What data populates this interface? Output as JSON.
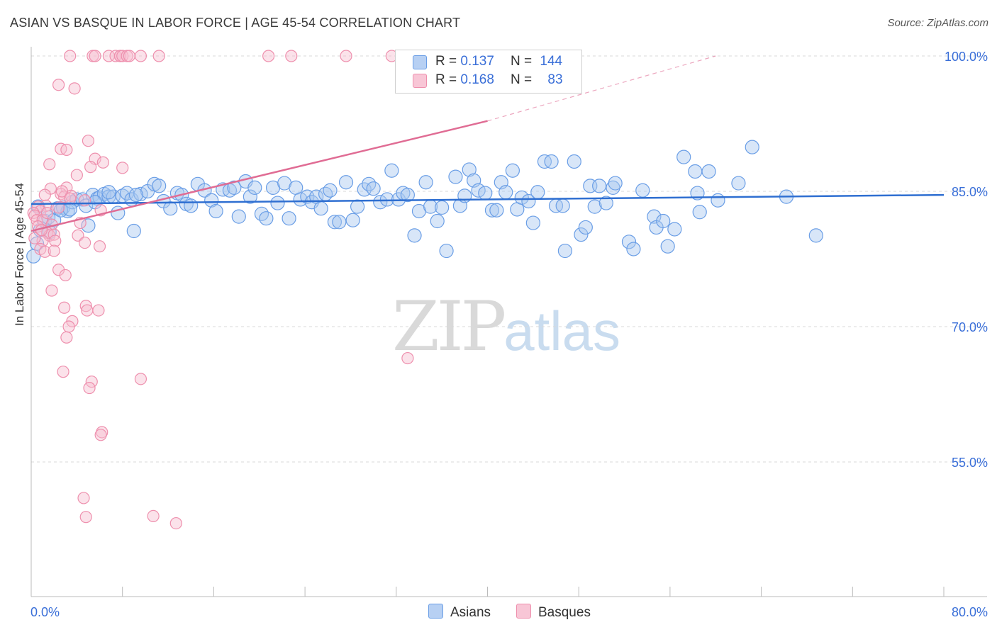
{
  "title": "ASIAN VS BASQUE IN LABOR FORCE | AGE 45-54 CORRELATION CHART",
  "source": "Source: ZipAtlas.com",
  "watermark": {
    "zip": "ZIP",
    "atlas": "atlas"
  },
  "legend_top": {
    "asian": {
      "r_label": "R =",
      "r_value": "0.137",
      "n_label": "N =",
      "n_value": "144"
    },
    "basque": {
      "r_label": "R =",
      "r_value": "0.168",
      "n_label": "N =",
      "n_value": "83"
    }
  },
  "colors": {
    "asian_fill": "#a9c8f0",
    "asian_stroke": "#6a9ee6",
    "asian_line": "#2f6fd1",
    "basque_fill": "#f6bfd0",
    "basque_stroke": "#ee8fad",
    "basque_line": "#e06c94",
    "tick_text": "#3a6fd8",
    "grid": "#d8d8d8"
  },
  "chart_data": {
    "type": "scatter",
    "title": "ASIAN VS BASQUE IN LABOR FORCE | AGE 45-54 CORRELATION CHART",
    "xlabel": "",
    "ylabel": "In Labor Force | Age 45-54",
    "xlim": [
      0,
      80
    ],
    "ylim": [
      40,
      100
    ],
    "x_tick_labels": [
      "0.0%",
      "80.0%"
    ],
    "y_ticks": [
      55,
      70,
      85,
      100
    ],
    "y_tick_labels": [
      "55.0%",
      "70.0%",
      "85.0%",
      "100.0%"
    ],
    "legend": [
      "Asians",
      "Basques"
    ],
    "series": [
      {
        "name": "Asians",
        "r": 0.137,
        "n": 144,
        "trend": {
          "x0": 0,
          "y0": 83.6,
          "x1": 80,
          "y1": 84.6
        },
        "points": [
          [
            0.2,
            77.8
          ],
          [
            0.5,
            79.2
          ],
          [
            0.8,
            80.7
          ],
          [
            1.2,
            81.7
          ],
          [
            1.5,
            82.1
          ],
          [
            2,
            81.8
          ],
          [
            2.3,
            83.1
          ],
          [
            2.8,
            83.2
          ],
          [
            3.2,
            82.8
          ],
          [
            3.6,
            83.8
          ],
          [
            4,
            84.1
          ],
          [
            4.5,
            84.1
          ],
          [
            4.8,
            83.4
          ],
          [
            5,
            81.2
          ],
          [
            5.4,
            84.6
          ],
          [
            5.8,
            84.2
          ],
          [
            6,
            84.3
          ],
          [
            6.4,
            84.7
          ],
          [
            6.8,
            84.4
          ],
          [
            7.2,
            84.4
          ],
          [
            7.6,
            82.6
          ],
          [
            8,
            84.5
          ],
          [
            8.4,
            84.8
          ],
          [
            8.8,
            84.1
          ],
          [
            9,
            80.6
          ],
          [
            9.6,
            84.7
          ],
          [
            10.2,
            85.0
          ],
          [
            10.8,
            85.8
          ],
          [
            11.2,
            85.6
          ],
          [
            11.6,
            83.9
          ],
          [
            12.2,
            83.1
          ],
          [
            12.8,
            84.8
          ],
          [
            13.2,
            84.6
          ],
          [
            13.6,
            83.6
          ],
          [
            14,
            83.4
          ],
          [
            14.6,
            85.8
          ],
          [
            15.2,
            85.1
          ],
          [
            15.8,
            84.0
          ],
          [
            16.2,
            82.8
          ],
          [
            16.8,
            85.2
          ],
          [
            17.4,
            85.1
          ],
          [
            17.8,
            85.4
          ],
          [
            18.2,
            82.2
          ],
          [
            18.8,
            86.1
          ],
          [
            19.2,
            84.4
          ],
          [
            19.6,
            85.4
          ],
          [
            20.2,
            82.5
          ],
          [
            20.6,
            82.0
          ],
          [
            21.2,
            85.4
          ],
          [
            21.6,
            83.7
          ],
          [
            22.2,
            85.9
          ],
          [
            22.6,
            82.0
          ],
          [
            23.2,
            85.4
          ],
          [
            23.6,
            84.1
          ],
          [
            24.2,
            84.4
          ],
          [
            24.6,
            83.8
          ],
          [
            25,
            84.4
          ],
          [
            25.4,
            83.1
          ],
          [
            25.8,
            84.7
          ],
          [
            26.2,
            85.1
          ],
          [
            26.6,
            81.6
          ],
          [
            27,
            81.6
          ],
          [
            27.6,
            86.0
          ],
          [
            28.2,
            81.8
          ],
          [
            28.6,
            83.3
          ],
          [
            29.2,
            85.2
          ],
          [
            29.6,
            85.8
          ],
          [
            30,
            85.3
          ],
          [
            30.6,
            83.8
          ],
          [
            31.2,
            84.1
          ],
          [
            31.6,
            87.3
          ],
          [
            32.2,
            84.1
          ],
          [
            32.6,
            84.8
          ],
          [
            33,
            84.6
          ],
          [
            33.6,
            80.1
          ],
          [
            34,
            82.8
          ],
          [
            34.6,
            86.0
          ],
          [
            35,
            83.3
          ],
          [
            35.6,
            81.7
          ],
          [
            36,
            83.2
          ],
          [
            36.4,
            78.4
          ],
          [
            37.2,
            86.6
          ],
          [
            37.6,
            83.4
          ],
          [
            38,
            84.5
          ],
          [
            38.4,
            87.4
          ],
          [
            38.8,
            86.2
          ],
          [
            39.2,
            85.1
          ],
          [
            39.8,
            84.8
          ],
          [
            40.4,
            82.9
          ],
          [
            40.8,
            82.9
          ],
          [
            41.2,
            86.0
          ],
          [
            41.6,
            84.9
          ],
          [
            42.2,
            87.3
          ],
          [
            42.6,
            83.0
          ],
          [
            43,
            84.3
          ],
          [
            43.6,
            83.9
          ],
          [
            44,
            81.5
          ],
          [
            44.4,
            84.9
          ],
          [
            45,
            88.3
          ],
          [
            45.6,
            88.3
          ],
          [
            46,
            83.4
          ],
          [
            46.6,
            83.4
          ],
          [
            46.8,
            78.4
          ],
          [
            47.6,
            88.3
          ],
          [
            48.2,
            80.2
          ],
          [
            48.6,
            81.0
          ],
          [
            49,
            85.6
          ],
          [
            49.4,
            83.3
          ],
          [
            49.8,
            85.6
          ],
          [
            50.4,
            83.7
          ],
          [
            51,
            85.4
          ],
          [
            51.2,
            85.9
          ],
          [
            52.4,
            79.4
          ],
          [
            52.8,
            78.6
          ],
          [
            53.6,
            85.1
          ],
          [
            54.6,
            82.2
          ],
          [
            54.8,
            81.0
          ],
          [
            55.4,
            81.7
          ],
          [
            55.8,
            78.9
          ],
          [
            56.4,
            80.8
          ],
          [
            57.2,
            88.8
          ],
          [
            58.2,
            87.2
          ],
          [
            58.4,
            84.8
          ],
          [
            58.6,
            82.7
          ],
          [
            59.4,
            87.2
          ],
          [
            60.2,
            84.0
          ],
          [
            62,
            85.9
          ],
          [
            63.2,
            89.9
          ],
          [
            66.2,
            84.4
          ],
          [
            68.8,
            80.1
          ],
          [
            0.6,
            83.3
          ],
          [
            1.6,
            80.5
          ],
          [
            2.6,
            82.9
          ],
          [
            3.4,
            83.0
          ],
          [
            5.6,
            83.8
          ],
          [
            6.8,
            84.9
          ],
          [
            9.2,
            84.6
          ]
        ]
      },
      {
        "name": "Basques",
        "r": 0.168,
        "n": 83,
        "trend": {
          "x0": 0,
          "y0": 80.6,
          "x1": 40,
          "y1": 92.8,
          "dashed_x1": 60,
          "dashed_y1": 100.0
        },
        "points": [
          [
            3.4,
            100
          ],
          [
            5.4,
            100
          ],
          [
            5.6,
            100
          ],
          [
            6.8,
            100
          ],
          [
            7.4,
            100
          ],
          [
            7.8,
            100
          ],
          [
            7.8,
            100
          ],
          [
            8.0,
            100
          ],
          [
            8.4,
            100
          ],
          [
            8.6,
            100
          ],
          [
            9.6,
            100
          ],
          [
            11.2,
            100
          ],
          [
            20.8,
            100
          ],
          [
            22.8,
            100
          ],
          [
            27.6,
            100
          ],
          [
            31.6,
            100
          ],
          [
            2.4,
            96.8
          ],
          [
            3.8,
            96.4
          ],
          [
            5.0,
            90.6
          ],
          [
            2.6,
            89.7
          ],
          [
            3.1,
            89.6
          ],
          [
            5.6,
            88.6
          ],
          [
            6.3,
            88.2
          ],
          [
            1.6,
            88.0
          ],
          [
            5.2,
            87.7
          ],
          [
            8.0,
            87.6
          ],
          [
            4.0,
            86.8
          ],
          [
            1.7,
            85.3
          ],
          [
            3.1,
            85.4
          ],
          [
            1.2,
            84.6
          ],
          [
            2.6,
            84.7
          ],
          [
            2.9,
            84.4
          ],
          [
            3.5,
            84.5
          ],
          [
            4.7,
            84.0
          ],
          [
            1.3,
            83.4
          ],
          [
            2.4,
            83.2
          ],
          [
            0.6,
            83.3
          ],
          [
            0.8,
            82.8
          ],
          [
            0.2,
            82.6
          ],
          [
            0.3,
            82.3
          ],
          [
            0.5,
            81.8
          ],
          [
            1.0,
            81.8
          ],
          [
            0.6,
            81.1
          ],
          [
            1.8,
            81.3
          ],
          [
            4.3,
            81.5
          ],
          [
            6.1,
            82.9
          ],
          [
            1.4,
            80.4
          ],
          [
            1.6,
            80.1
          ],
          [
            2.0,
            80.2
          ],
          [
            4.1,
            80.1
          ],
          [
            1.0,
            79.5
          ],
          [
            2.1,
            79.5
          ],
          [
            4.7,
            79.3
          ],
          [
            6.0,
            78.9
          ],
          [
            0.8,
            78.6
          ],
          [
            1.2,
            78.3
          ],
          [
            2.0,
            78.4
          ],
          [
            2.4,
            76.3
          ],
          [
            3.0,
            75.7
          ],
          [
            1.8,
            74.0
          ],
          [
            2.9,
            72.1
          ],
          [
            4.8,
            72.3
          ],
          [
            5.9,
            71.8
          ],
          [
            4.9,
            71.8
          ],
          [
            3.6,
            70.6
          ],
          [
            3.3,
            70.0
          ],
          [
            3.1,
            68.8
          ],
          [
            2.8,
            65.0
          ],
          [
            5.3,
            63.9
          ],
          [
            5.1,
            63.2
          ],
          [
            9.6,
            64.2
          ],
          [
            33.0,
            66.5
          ],
          [
            6.2,
            58.3
          ],
          [
            6.1,
            58.0
          ],
          [
            4.6,
            51.0
          ],
          [
            4.8,
            48.9
          ],
          [
            10.7,
            49.0
          ],
          [
            12.7,
            48.2
          ],
          [
            0.3,
            79.8
          ],
          [
            1.4,
            82.6
          ],
          [
            2.7,
            85.0
          ],
          [
            0.9,
            80.7
          ],
          [
            3.4,
            84.2
          ]
        ]
      }
    ]
  }
}
